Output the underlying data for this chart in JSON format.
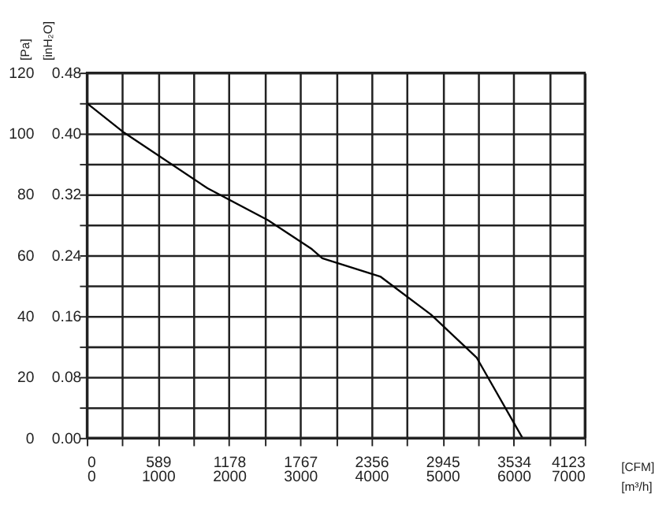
{
  "chart_data": {
    "type": "line",
    "x": [
      0,
      308,
      1000,
      1500,
      1864,
      1950,
      2430,
      2850,
      3229,
      3607
    ],
    "series": [
      {
        "color": "#000000",
        "values": [
          110,
          100.3,
          82,
          71.5,
          62,
          59,
          53,
          40.5,
          26.3,
          0
        ]
      }
    ],
    "xlim": [
      0,
      4123
    ],
    "xticks": [
      0,
      {
        "value": 294.5,
        "label": null
      },
      589,
      {
        "value": 883.5,
        "label": null
      },
      1178,
      {
        "value": 1472.5,
        "label": null
      },
      1767,
      {
        "value": 2061.5,
        "label": null
      },
      2356,
      {
        "value": 2650.5,
        "label": null
      },
      2945,
      {
        "value": 3239.5,
        "label": null
      },
      3534,
      {
        "value": 3828.5,
        "label": null
      },
      4123
    ],
    "x2lim": [
      0,
      7000
    ],
    "x2ticks": [
      0,
      1000,
      2000,
      3000,
      4000,
      5000,
      6000,
      7000
    ],
    "xlabel": "[CFM]",
    "x2label": "[m³/h]",
    "ylim": [
      0,
      120
    ],
    "yticks": [
      0,
      {
        "value": 10,
        "label": null
      },
      20,
      {
        "value": 30,
        "label": null
      },
      40,
      {
        "value": 50,
        "label": null
      },
      60,
      {
        "value": 70,
        "label": null
      },
      80,
      {
        "value": 90,
        "label": null
      },
      100,
      {
        "value": 110,
        "label": null
      },
      120
    ],
    "y2lim": [
      0,
      0.48
    ],
    "y2ticks": [
      {
        "value": 0,
        "label": "0.00"
      },
      {
        "value": 0.08,
        "label": "0.08"
      },
      {
        "value": 0.16,
        "label": "0.16"
      },
      {
        "value": 0.24,
        "label": "0.24"
      },
      {
        "value": 0.32,
        "label": "0.32"
      },
      {
        "value": 0.4,
        "label": "0.40"
      },
      {
        "value": 0.48,
        "label": "0.48"
      }
    ],
    "ylabel": "[Pa]",
    "y2label": "[inH₂O]",
    "grid": true,
    "marker": "none",
    "line_style": "solid"
  }
}
